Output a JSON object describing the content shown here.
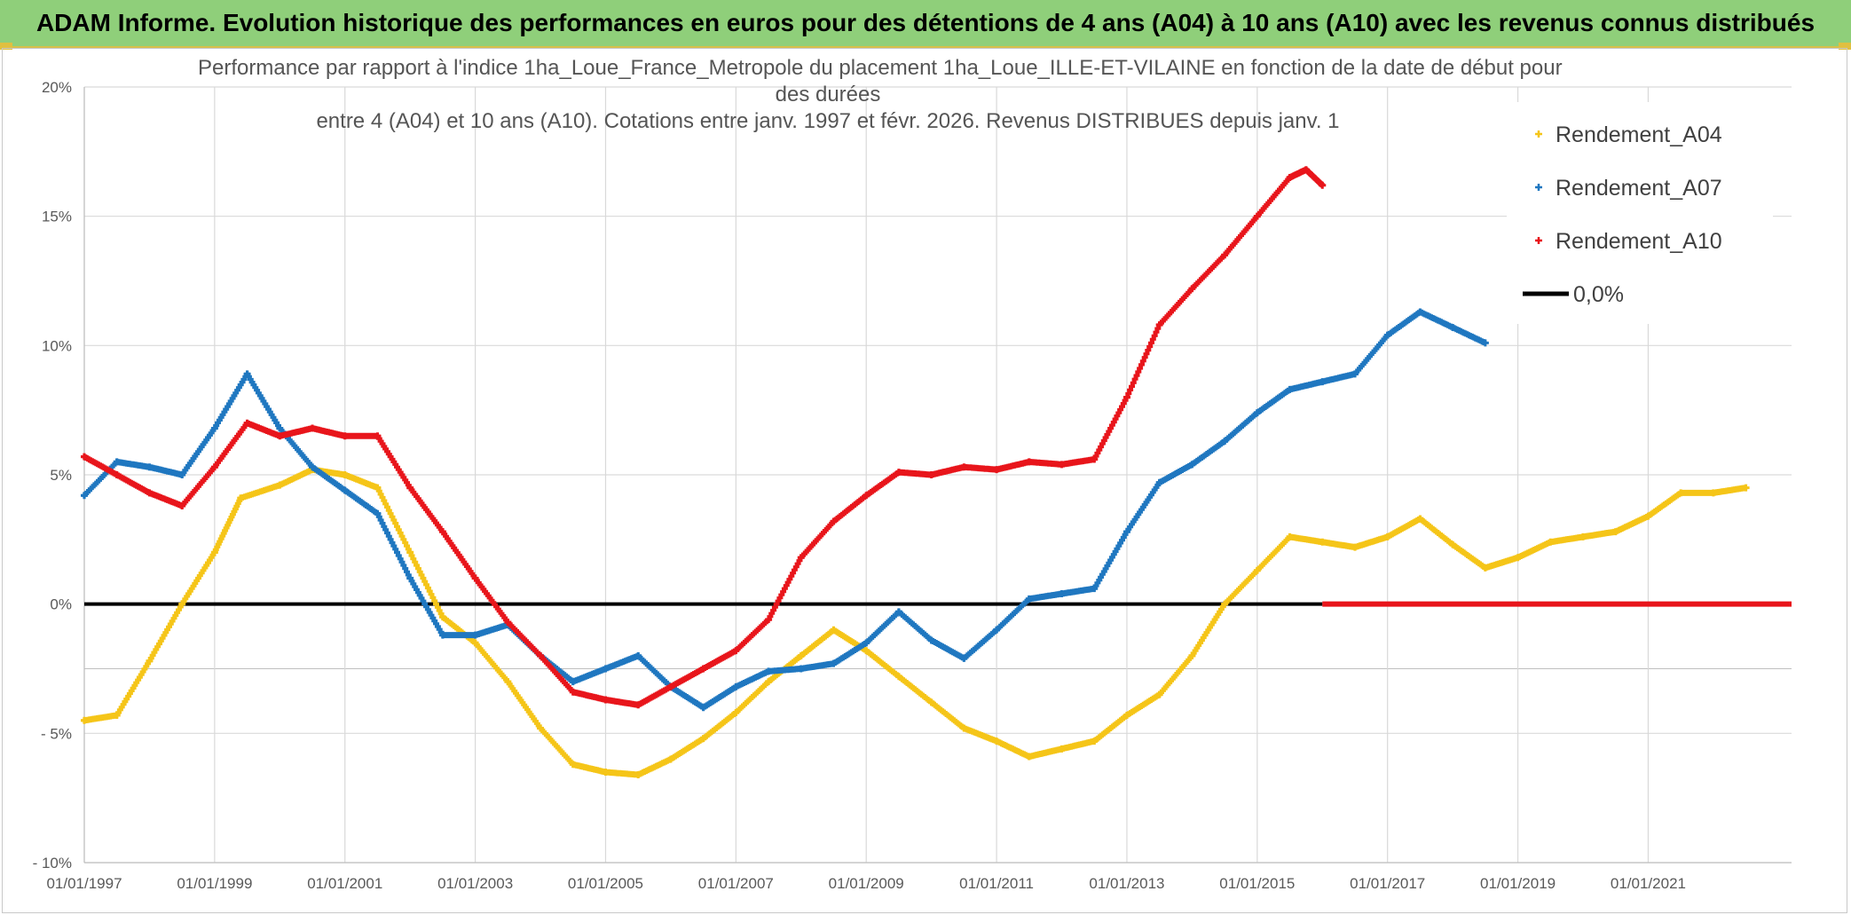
{
  "banner": {
    "text": "ADAM Informe. Evolution historique des performances en euros pour des détentions de 4 ans (A04) à 10 ans (A10) avec les revenus connus distribués"
  },
  "colors": {
    "banner_bg": "#8fcf7a",
    "A04": "#f5c518",
    "A07": "#1f77c0",
    "A10": "#e8151b",
    "zero": "#000000",
    "grid": "#d9d9d9"
  },
  "chart_data": {
    "type": "scatter",
    "title_lines": [
      "Performance par rapport à l'indice 1ha_Loue_France_Metropole  du placement 1ha_Loue_ILLE-ET-VILAINE en fonction de la date de début pour",
      "des durées",
      "entre 4 (A04) et 10 ans (A10). Cotations entre janv. 1997 et févr. 2026. Revenus DISTRIBUES depuis janv. 1"
    ],
    "xlabel": "",
    "ylabel": "",
    "xlim": [
      1997.0,
      2023.2
    ],
    "ylim": [
      -10,
      20
    ],
    "x_ticks": [
      1997,
      1999,
      2001,
      2003,
      2005,
      2007,
      2009,
      2011,
      2013,
      2015,
      2017,
      2019,
      2021
    ],
    "x_tick_labels": [
      "01/01/1997",
      "01/01/1999",
      "01/01/2001",
      "01/01/2003",
      "01/01/2005",
      "01/01/2007",
      "01/01/2009",
      "01/01/2011",
      "01/01/2013",
      "01/01/2015",
      "01/01/2017",
      "01/01/2019",
      "01/01/2021"
    ],
    "y_ticks": [
      -10,
      -5,
      0,
      5,
      10,
      15,
      20
    ],
    "y_tick_labels": [
      "- 10%",
      "- 5%",
      "0%",
      "5%",
      "10%",
      "15%",
      "20%"
    ],
    "grid": true,
    "legend_position": "right",
    "legend": [
      "Rendement_A04",
      "Rendement_A07",
      "Rendement_A10",
      "0,0%"
    ],
    "series": [
      {
        "name": "Rendement_A04",
        "x": [
          1997.0,
          1997.5,
          1998.0,
          1998.5,
          1999.0,
          1999.4,
          2000.0,
          2000.5,
          2001.0,
          2001.5,
          2002.0,
          2002.5,
          2003.0,
          2003.5,
          2004.0,
          2004.5,
          2005.0,
          2005.5,
          2006.0,
          2006.5,
          2007.0,
          2007.5,
          2008.0,
          2008.5,
          2009.0,
          2009.5,
          2010.0,
          2010.5,
          2011.0,
          2011.5,
          2012.0,
          2012.5,
          2013.0,
          2013.5,
          2014.0,
          2014.5,
          2015.0,
          2015.5,
          2016.0,
          2016.5,
          2017.0,
          2017.5,
          2018.0,
          2018.5,
          2019.0,
          2019.5,
          2020.0,
          2020.5,
          2021.0,
          2021.5,
          2022.0,
          2022.5
        ],
        "values": [
          -4.5,
          -4.3,
          -2.2,
          0.0,
          2.0,
          4.1,
          4.6,
          5.2,
          5.0,
          4.5,
          2.0,
          -0.5,
          -1.5,
          -3.0,
          -4.8,
          -6.2,
          -6.5,
          -6.6,
          -6.0,
          -5.2,
          -4.2,
          -3.0,
          -2.0,
          -1.0,
          -1.8,
          -2.8,
          -3.8,
          -4.8,
          -5.3,
          -5.9,
          -5.6,
          -5.3,
          -4.3,
          -3.5,
          -2.0,
          0.0,
          1.3,
          2.6,
          2.4,
          2.2,
          2.6,
          3.3,
          2.3,
          1.4,
          1.8,
          2.4,
          2.6,
          2.8,
          3.4,
          4.3,
          4.3,
          4.5
        ]
      },
      {
        "name": "Rendement_A07",
        "x": [
          1997.0,
          1997.5,
          1998.0,
          1998.5,
          1999.0,
          1999.5,
          2000.0,
          2000.5,
          2001.0,
          2001.5,
          2002.0,
          2002.5,
          2003.0,
          2003.5,
          2004.0,
          2004.5,
          2005.0,
          2005.5,
          2006.0,
          2006.5,
          2007.0,
          2007.5,
          2008.0,
          2008.5,
          2009.0,
          2009.5,
          2010.0,
          2010.5,
          2011.0,
          2011.5,
          2012.0,
          2012.5,
          2013.0,
          2013.5,
          2014.0,
          2014.5,
          2015.0,
          2015.5,
          2016.0,
          2016.5,
          2017.0,
          2017.5,
          2018.0,
          2018.5
        ],
        "values": [
          4.2,
          5.5,
          5.3,
          5.0,
          6.8,
          8.9,
          6.8,
          5.3,
          4.4,
          3.5,
          1.0,
          -1.2,
          -1.2,
          -0.8,
          -2.0,
          -3.0,
          -2.5,
          -2.0,
          -3.2,
          -4.0,
          -3.2,
          -2.6,
          -2.5,
          -2.3,
          -1.5,
          -0.3,
          -1.4,
          -2.1,
          -1.0,
          0.2,
          0.4,
          0.6,
          2.8,
          4.7,
          5.4,
          6.3,
          7.4,
          8.3,
          8.6,
          8.9,
          10.4,
          11.3,
          10.7,
          10.1
        ]
      },
      {
        "name": "Rendement_A10",
        "x": [
          1997.0,
          1997.5,
          1998.0,
          1998.5,
          1999.0,
          1999.5,
          2000.0,
          2000.5,
          2001.0,
          2001.5,
          2002.0,
          2002.5,
          2003.0,
          2003.5,
          2004.0,
          2004.5,
          2005.0,
          2005.5,
          2006.0,
          2006.5,
          2007.0,
          2007.5,
          2008.0,
          2008.5,
          2009.0,
          2009.5,
          2010.0,
          2010.5,
          2011.0,
          2011.5,
          2012.0,
          2012.5,
          2013.0,
          2013.5,
          2014.0,
          2014.5,
          2015.0,
          2015.5,
          2015.75,
          2016.0
        ],
        "values": [
          5.7,
          5.0,
          4.3,
          3.8,
          5.3,
          7.0,
          6.5,
          6.8,
          6.5,
          6.5,
          4.5,
          2.8,
          1.0,
          -0.7,
          -2.0,
          -3.4,
          -3.7,
          -3.9,
          -3.2,
          -2.5,
          -1.8,
          -0.6,
          1.8,
          3.2,
          4.2,
          5.1,
          5.0,
          5.3,
          5.2,
          5.5,
          5.4,
          5.6,
          8.0,
          10.8,
          12.2,
          13.5,
          15.0,
          16.5,
          16.8,
          16.2
        ]
      }
    ],
    "zero_line": {
      "name": "0,0%",
      "value": 0
    },
    "A10_flat_segment": {
      "x_start": 2016.0,
      "x_end": 2023.2,
      "value": 0
    }
  }
}
